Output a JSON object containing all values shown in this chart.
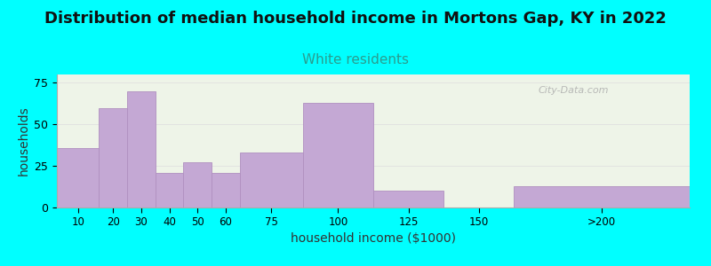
{
  "title": "Distribution of median household income in Mortons Gap, KY in 2022",
  "subtitle": "White residents",
  "xlabel": "household income ($1000)",
  "ylabel": "households",
  "background_outer": "#00FFFF",
  "background_inner": "#eef4e8",
  "bar_color": "#c4a8d4",
  "bar_edge_color": "#b090c0",
  "title_fontsize": 13,
  "subtitle_fontsize": 11,
  "subtitle_color": "#2a9d8f",
  "bin_edges": [
    0,
    15,
    25,
    35,
    45,
    55,
    65,
    87.5,
    112.5,
    137.5,
    162.5,
    225
  ],
  "bin_labels": [
    "10",
    "20",
    "30",
    "40",
    "50",
    "60",
    "75",
    "100",
    "125",
    "150",
    ">200"
  ],
  "values": [
    36,
    60,
    70,
    21,
    27,
    21,
    33,
    63,
    10,
    0,
    13
  ],
  "ylim": [
    0,
    80
  ],
  "yticks": [
    0,
    25,
    50,
    75
  ],
  "xtick_positions": [
    7.5,
    20,
    30,
    40,
    50,
    60,
    76.25,
    100,
    125,
    150,
    193.75
  ],
  "watermark": "City-Data.com"
}
